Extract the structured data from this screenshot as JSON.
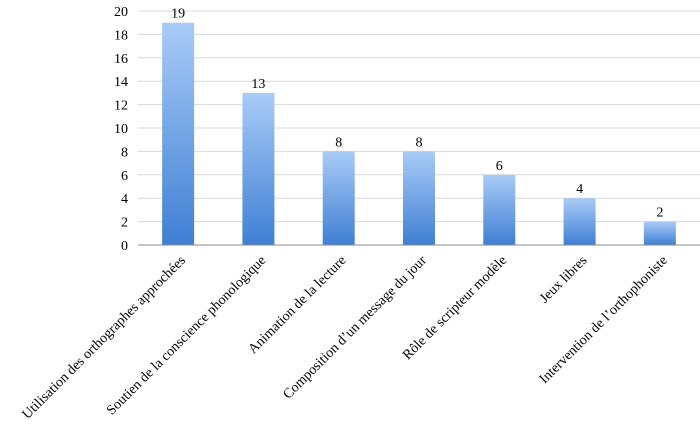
{
  "chart_data": {
    "type": "bar",
    "categories": [
      "Utilisation des orthographes approchées",
      "Soutien de la conscience phonologique",
      "Animation de la lecture",
      "Composition d’un message du jour",
      "Rôle de scripteur modèle",
      "Jeux libres",
      "Intervention de l’orthophoniste"
    ],
    "values": [
      19,
      13,
      8,
      8,
      6,
      4,
      2
    ],
    "ylim": [
      0,
      20
    ],
    "yticks": [
      0,
      2,
      4,
      6,
      8,
      10,
      12,
      14,
      16,
      18,
      20
    ],
    "grid": true,
    "legend": "none",
    "colors": {
      "bar_top": "#A9CBF7",
      "bar_bottom": "#3F7FD4",
      "grid": "#D9D9D9"
    }
  }
}
